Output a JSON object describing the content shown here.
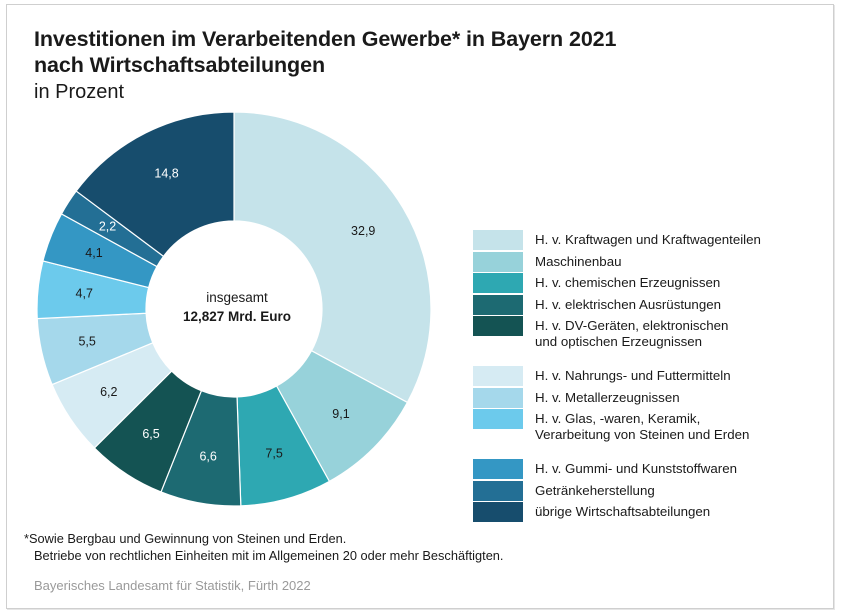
{
  "title_line1": "Investitionen im Verarbeitenden Gewerbe* in Bayern 2021",
  "title_line2": "nach Wirtschaftsabteilungen",
  "subtitle": "in Prozent",
  "center": {
    "label": "insgesamt",
    "value": "12,827 Mrd. Euro"
  },
  "footnote": {
    "line1": "*Sowie Bergbau und Gewinnung von Steinen und Erden.",
    "line2": "Betriebe von rechtlichen Einheiten mit im Allgemeinen 20 oder mehr Beschäftigten."
  },
  "source": "Bayerisches Landesamt für Statistik, Fürth 2022",
  "chart_data": {
    "type": "pie",
    "variant": "donut",
    "title": "Investitionen im Verarbeitenden Gewerbe* in Bayern 2021 nach Wirtschaftsabteilungen",
    "subtitle": "in Prozent",
    "unit": "%",
    "start": "12 o'clock, clockwise",
    "legend_position": "right",
    "center_text": [
      "insgesamt",
      "12,827 Mrd. Euro"
    ],
    "slices": [
      {
        "name": "H. v. Kraftwagen und Kraftwagenteilen",
        "value": 32.9,
        "label": "32,9",
        "color": "#c5e3ea",
        "label_color": "#1a1a1a",
        "group": 0
      },
      {
        "name": "Maschinenbau",
        "value": 9.1,
        "label": "9,1",
        "color": "#97d2da",
        "label_color": "#1a1a1a",
        "group": 0
      },
      {
        "name": "H. v. chemischen Erzeugnissen",
        "value": 7.5,
        "label": "7,5",
        "color": "#2ea8b2",
        "label_color": "#1a1a1a",
        "group": 0
      },
      {
        "name": "H. v. elektrischen Ausrüstungen",
        "value": 6.6,
        "label": "6,6",
        "color": "#1d6a72",
        "label_color": "#ffffff",
        "group": 0
      },
      {
        "name": "H. v. DV-Geräten, elektronischen\nund optischen Erzeugnissen",
        "value": 6.5,
        "label": "6,5",
        "color": "#145353",
        "label_color": "#ffffff",
        "group": 0
      },
      {
        "name": "H. v. Nahrungs- und Futtermitteln",
        "value": 6.2,
        "label": "6,2",
        "color": "#d6ebf3",
        "label_color": "#1a1a1a",
        "group": 1
      },
      {
        "name": "H. v. Metallerzeugnissen",
        "value": 5.5,
        "label": "5,5",
        "color": "#a5d8eb",
        "label_color": "#1a1a1a",
        "group": 1
      },
      {
        "name": "H. v. Glas, -waren, Keramik,\nVerarbeitung von Steinen und Erden",
        "value": 4.7,
        "label": "4,7",
        "color": "#6ccaec",
        "label_color": "#1a1a1a",
        "group": 1
      },
      {
        "name": "H. v. Gummi- und Kunststoffwaren",
        "value": 4.1,
        "label": "4,1",
        "color": "#3497c4",
        "label_color": "#1a1a1a",
        "group": 2
      },
      {
        "name": "Getränkeherstellung",
        "value": 2.2,
        "label": "2,2",
        "color": "#236f95",
        "label_color": "#ffffff",
        "group": 2
      },
      {
        "name": "übrige Wirtschaftsabteilungen",
        "value": 14.8,
        "label": "14,8",
        "color": "#174d6d",
        "label_color": "#ffffff",
        "group": 2
      }
    ]
  }
}
